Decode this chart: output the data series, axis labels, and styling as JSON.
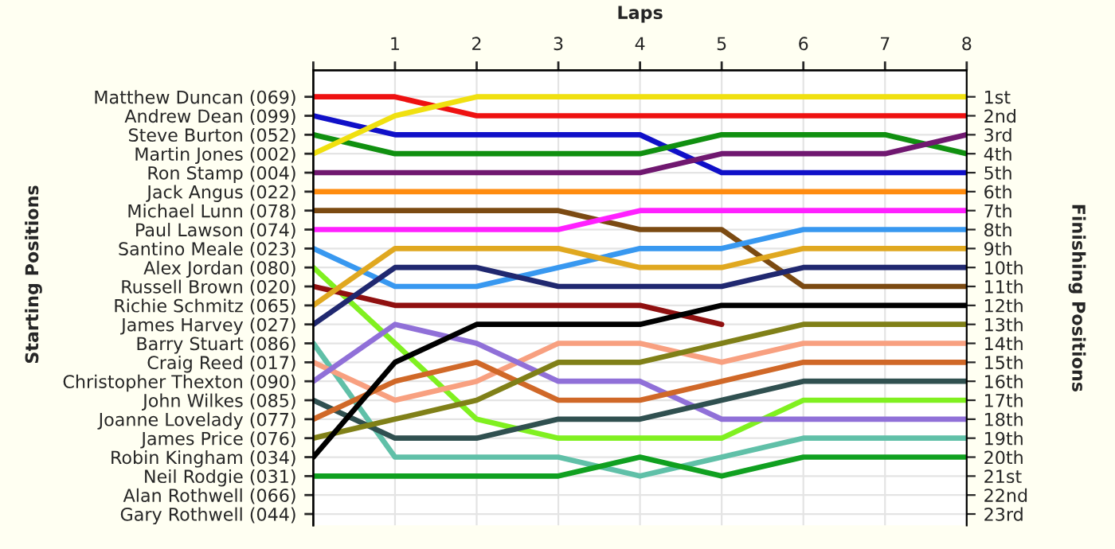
{
  "chart_data": {
    "type": "line",
    "xlabel": "Laps",
    "ylabel": "Finishing Positions",
    "annotations": [
      "Starting Positions"
    ],
    "x": [
      0,
      1,
      2,
      3,
      4,
      5,
      6,
      7,
      8
    ],
    "xlim": [
      0,
      8
    ],
    "xticks": [
      {
        "value": 0,
        "label": null
      },
      1,
      2,
      3,
      4,
      5,
      6,
      7,
      8
    ],
    "ylim": [
      23.6,
      -0.4
    ],
    "y_categories": [
      "Matthew Duncan (069)",
      "Andrew Dean (099)",
      "Steve Burton (052)",
      "Martin Jones (002)",
      "Ron Stamp (004)",
      "Jack Angus (022)",
      "Michael Lunn (078)",
      "Paul Lawson (074)",
      "Santino Meale (023)",
      "Alex Jordan (080)",
      "Russell Brown (020)",
      "Richie Schmitz (065)",
      "James Harvey (027)",
      "Barry Stuart (086)",
      "Craig Reed (017)",
      "Christopher Thexton (090)",
      "John Wilkes (085)",
      "Joanne Lovelady (077)",
      "James Price (076)",
      "Robin Kingham (034)",
      "Neil Rodgie (031)",
      "Alan Rothwell (066)",
      "Gary Rothwell (044)"
    ],
    "yticks": [
      {
        "value": 1,
        "label": "1st"
      },
      {
        "value": 2,
        "label": "2nd"
      },
      {
        "value": 3,
        "label": "3rd"
      },
      {
        "value": 4,
        "label": "4th"
      },
      {
        "value": 5,
        "label": "5th"
      },
      {
        "value": 6,
        "label": "6th"
      },
      {
        "value": 7,
        "label": "7th"
      },
      {
        "value": 8,
        "label": "8th"
      },
      {
        "value": 9,
        "label": "9th"
      },
      {
        "value": 10,
        "label": "10th"
      },
      {
        "value": 11,
        "label": "11th"
      },
      {
        "value": 12,
        "label": "12th"
      },
      {
        "value": 13,
        "label": "13th"
      },
      {
        "value": 14,
        "label": "14th"
      },
      {
        "value": 15,
        "label": "15th"
      },
      {
        "value": 16,
        "label": "16th"
      },
      {
        "value": 17,
        "label": "17th"
      },
      {
        "value": 18,
        "label": "18th"
      },
      {
        "value": 19,
        "label": "19th"
      },
      {
        "value": 20,
        "label": "20th"
      },
      {
        "value": 21,
        "label": "21st"
      },
      {
        "value": 22,
        "label": "22nd"
      },
      {
        "value": 23,
        "label": "23rd"
      }
    ],
    "grid": true,
    "line_style": "solid",
    "marker": "none",
    "series": [
      {
        "color": "#ee1111",
        "values": [
          1,
          1,
          2,
          2,
          2,
          2,
          2,
          2,
          2
        ]
      },
      {
        "color": "#1010c8",
        "values": [
          2,
          3,
          3,
          3,
          3,
          5,
          5,
          5,
          5
        ]
      },
      {
        "color": "#109010",
        "values": [
          3,
          4,
          4,
          4,
          4,
          3,
          3,
          3,
          4
        ]
      },
      {
        "color": "#f0e010",
        "values": [
          4,
          2,
          1,
          1,
          1,
          1,
          1,
          1,
          1
        ]
      },
      {
        "color": "#701870",
        "values": [
          5,
          5,
          5,
          5,
          5,
          4,
          4,
          4,
          3
        ]
      },
      {
        "color": "#ff8c10",
        "values": [
          6,
          6,
          6,
          6,
          6,
          6,
          6,
          6,
          6
        ]
      },
      {
        "color": "#7b4a12",
        "values": [
          7,
          7,
          7,
          7,
          8,
          8,
          11,
          11,
          11
        ]
      },
      {
        "color": "#ff20ff",
        "values": [
          8,
          8,
          8,
          8,
          7,
          7,
          7,
          7,
          7
        ]
      },
      {
        "color": "#3898f0",
        "values": [
          9,
          11,
          11,
          10,
          9,
          9,
          8,
          8,
          8
        ]
      },
      {
        "color": "#80f020",
        "values": [
          10,
          14,
          18,
          19,
          19,
          19,
          17,
          17,
          17
        ]
      },
      {
        "color": "#901010",
        "values": [
          11,
          12,
          12,
          12,
          12,
          13,
          null,
          null,
          null
        ]
      },
      {
        "color": "#e0a820",
        "values": [
          12,
          9,
          9,
          9,
          10,
          10,
          9,
          9,
          9
        ]
      },
      {
        "color": "#202870",
        "values": [
          13,
          10,
          10,
          11,
          11,
          11,
          10,
          10,
          10
        ]
      },
      {
        "color": "#60c0a8",
        "values": [
          14,
          20,
          20,
          20,
          21,
          20,
          19,
          19,
          19
        ]
      },
      {
        "color": "#f8a080",
        "values": [
          15,
          17,
          16,
          14,
          14,
          15,
          14,
          14,
          14
        ]
      },
      {
        "color": "#9070d8",
        "values": [
          16,
          13,
          14,
          16,
          16,
          18,
          18,
          18,
          18
        ]
      },
      {
        "color": "#305050",
        "values": [
          17,
          19,
          19,
          18,
          18,
          17,
          16,
          16,
          16
        ]
      },
      {
        "color": "#d06828",
        "values": [
          18,
          16,
          15,
          17,
          17,
          16,
          15,
          15,
          15
        ]
      },
      {
        "color": "#808018",
        "values": [
          19,
          18,
          17,
          15,
          15,
          14,
          13,
          13,
          13
        ]
      },
      {
        "color": "#000000",
        "values": [
          20,
          15,
          13,
          13,
          13,
          12,
          12,
          12,
          12
        ]
      },
      {
        "color": "#10a020",
        "values": [
          21,
          21,
          21,
          21,
          20,
          21,
          20,
          20,
          20
        ]
      }
    ]
  }
}
